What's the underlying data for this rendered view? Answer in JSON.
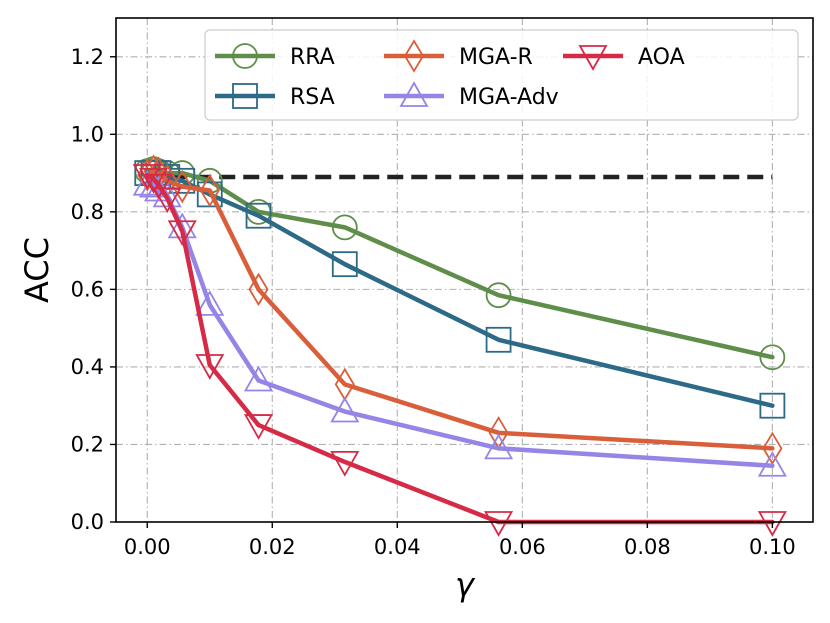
{
  "chart_data": {
    "type": "line",
    "xlabel": "γ",
    "ylabel": "ACC",
    "xlim": [
      -0.005,
      0.1065
    ],
    "ylim": [
      0.0,
      1.3
    ],
    "xticks": [
      0.0,
      0.02,
      0.04,
      0.06,
      0.08,
      0.1
    ],
    "xtick_labels": [
      "0.00",
      "0.02",
      "0.04",
      "0.06",
      "0.08",
      "0.10"
    ],
    "yticks": [
      0.0,
      0.2,
      0.4,
      0.6,
      0.8,
      1.0,
      1.2
    ],
    "ytick_labels": [
      "0.0",
      "0.2",
      "0.4",
      "0.6",
      "0.8",
      "1.0",
      "1.2"
    ],
    "grid": true,
    "legend_position": "top-right",
    "baseline": {
      "y": 0.89,
      "x_range": [
        0.0,
        0.1
      ],
      "style": "dashed",
      "color": "#222222"
    },
    "series": [
      {
        "name": "RRA",
        "color": "#5f8d4a",
        "marker": "circle",
        "x": [
          0.0,
          0.001,
          0.0018,
          0.0032,
          0.0056,
          0.01,
          0.0178,
          0.0316,
          0.0562,
          0.1
        ],
        "y": [
          0.905,
          0.91,
          0.905,
          0.9,
          0.9,
          0.88,
          0.8,
          0.76,
          0.585,
          0.425
        ]
      },
      {
        "name": "RSA",
        "color": "#2c6a87",
        "marker": "square",
        "x": [
          0.0,
          0.001,
          0.0018,
          0.0032,
          0.0056,
          0.01,
          0.0178,
          0.0316,
          0.0562,
          0.1
        ],
        "y": [
          0.9,
          0.9,
          0.9,
          0.89,
          0.88,
          0.845,
          0.79,
          0.665,
          0.47,
          0.3
        ]
      },
      {
        "name": "MGA-R",
        "color": "#d95f3b",
        "marker": "diamond",
        "x": [
          0.0,
          0.001,
          0.0018,
          0.0032,
          0.0056,
          0.01,
          0.0178,
          0.0316,
          0.0562,
          0.1
        ],
        "y": [
          0.895,
          0.905,
          0.9,
          0.88,
          0.865,
          0.855,
          0.6,
          0.355,
          0.23,
          0.19
        ]
      },
      {
        "name": "MGA-Adv",
        "color": "#9485e6",
        "marker": "triangle-up",
        "x": [
          0.0,
          0.001,
          0.0018,
          0.0032,
          0.0056,
          0.01,
          0.0178,
          0.0316,
          0.0562,
          0.1
        ],
        "y": [
          0.87,
          0.865,
          0.855,
          0.84,
          0.76,
          0.56,
          0.365,
          0.285,
          0.19,
          0.145
        ]
      },
      {
        "name": "AOA",
        "color": "#d62b47",
        "marker": "triangle-down",
        "x": [
          0.0,
          0.001,
          0.0018,
          0.0032,
          0.0056,
          0.01,
          0.0178,
          0.0316,
          0.0562,
          0.1
        ],
        "y": [
          0.895,
          0.885,
          0.87,
          0.835,
          0.75,
          0.405,
          0.25,
          0.155,
          0.0,
          0.0
        ]
      }
    ]
  }
}
